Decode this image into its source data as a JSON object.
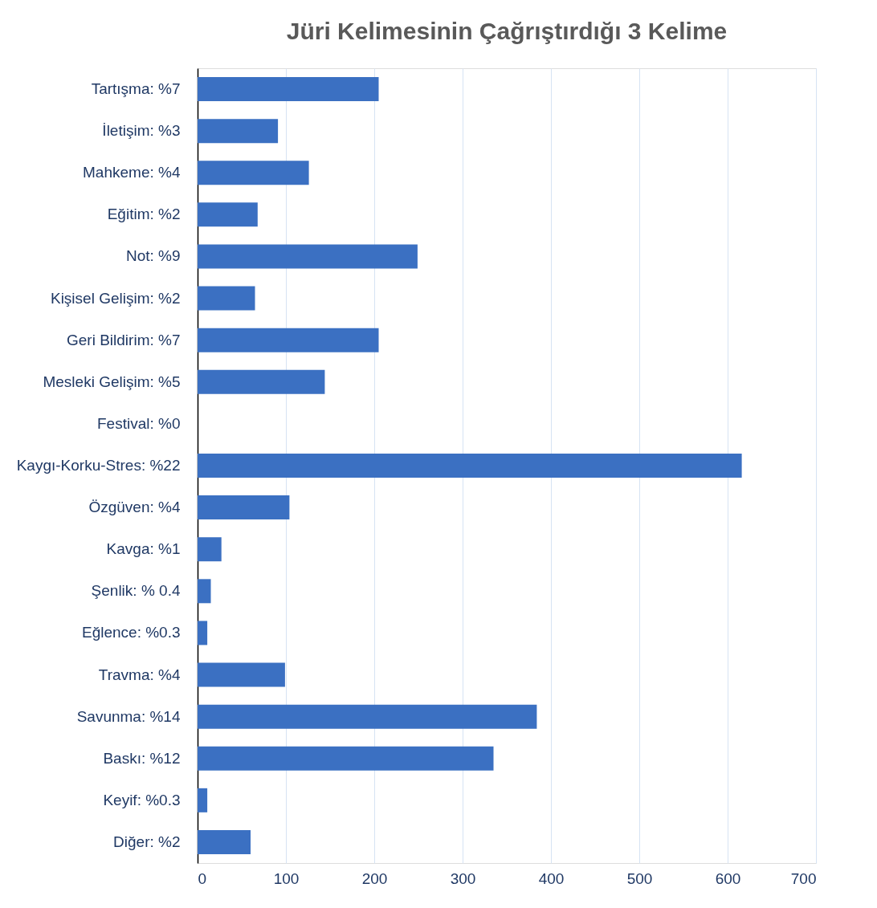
{
  "chart_data": {
    "type": "bar",
    "orientation": "horizontal",
    "title": "Jüri Kelimesinin Çağrıştırdığı 3 Kelime",
    "categories": [
      "Tartışma: %7",
      "İletişim: %3",
      "Mahkeme: %4",
      "Eğitim: %2",
      "Not: %9",
      "Kişisel Gelişim: %2",
      "Geri Bildirim: %7",
      "Mesleki Gelişim: %5",
      "Festival: %0",
      "Kaygı-Korku-Stres: %22",
      "Özgüven: %4",
      "Kavga: %1",
      "Şenlik: % 0.4",
      "Eğlence: %0.3",
      "Travma: %4",
      "Savunma: %14",
      "Baskı: %12",
      "Keyif: %0.3",
      "Diğer: %2"
    ],
    "values": [
      205,
      91,
      126,
      68,
      249,
      65,
      205,
      144,
      0,
      616,
      104,
      27,
      15,
      11,
      99,
      384,
      335,
      11,
      60
    ],
    "color": "#3b70c2",
    "xlim": [
      0,
      700
    ],
    "xticks": [
      0,
      100,
      200,
      300,
      400,
      500,
      600,
      700
    ],
    "grid": "x"
  }
}
